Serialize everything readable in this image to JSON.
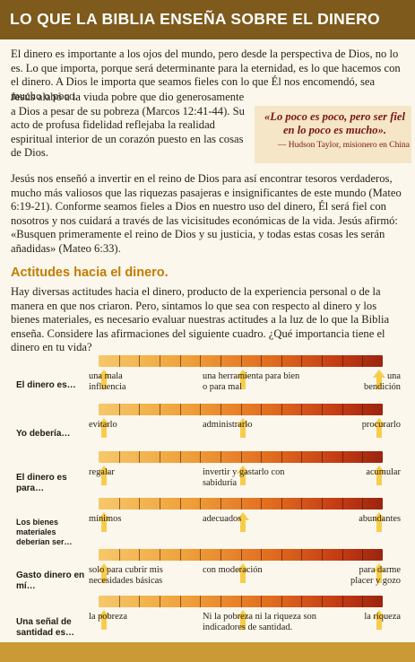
{
  "header": {
    "title": "LO QUE LA BIBLIA ENSEÑA SOBRE EL DINERO"
  },
  "intro": {
    "p1_full": "El dinero es importante a los ojos del mundo, pero desde la perspectiva de Dios, no lo es. Lo que importa, porque será determinante para la eternidad, es lo que hacemos con el dinero. A Dios le importa que seamos fieles con lo que Él nos encomendó, sea mucho o poco. Jesús alabó a la viuda pobre que dio generosamente a Dios a pesar de su pobreza (Marcos 12:41-44). Su acto de profusa fidelidad reflejaba la realidad espiritual interior de un corazón puesto en las cosas de Dios.",
    "p1_top": "El dinero es importante a los ojos del mundo, pero desde la perspectiva de Dios, no lo es. Lo que importa, porque será determinante para la eternidad, es lo que hacemos con el dinero. A Dios le importa que seamos fieles con lo que Él nos encomendó, sea mucho o poco.",
    "p1_rest": "Jesús alabó a la viuda pobre que dio generosamente a Dios a pesar de su pobreza (Marcos 12:41-44). Su acto de profusa fidelidad reflejaba la realidad espiritual interior de un corazón puesto en las cosas de Dios.",
    "p2": "Jesús nos enseñó a invertir en el reino de Dios para así encontrar tesoros verdaderos, mucho más valiosos que las riquezas pasajeras e insignificantes de este mundo (Mateo 6:19-21). Conforme seamos fieles a Dios en nuestro uso del dinero, Él será fiel con nosotros y nos cuidará a través de las vicisitudes económicas de la vida. Jesús afirmó: «Busquen primeramente el reino de Dios y su justicia, y todas estas cosas les serán añadidas» (Mateo 6:33)."
  },
  "quote": {
    "text": "«Lo poco es poco, pero ser fiel en lo poco es mucho».",
    "attribution": "— Hudson Taylor, misionero en China"
  },
  "attitudes": {
    "heading": "Actitudes hacia el dinero.",
    "intro": "Hay diversas actitudes hacia el dinero, producto de la experiencia personal o de la manera en que nos criaron. Pero, sintamos lo que sea con respecto al dinero y los bienes materiales, es necesario evaluar nuestras actitudes a la luz de lo que la Biblia enseña. Considere las afirmaciones del siguiente cuadro. ¿Qué importancia tiene el dinero en tu vida?",
    "rows": [
      {
        "label": "El dinero es…",
        "left": "una mala influencia",
        "middle": "una herramienta para bien o para mal",
        "right": "una bendición"
      },
      {
        "label": "Yo debería…",
        "left": "evitarlo",
        "middle": "administrarlo",
        "right": "procurarlo"
      },
      {
        "label": "El dinero es para…",
        "left": "regalar",
        "middle": "invertir y gastarlo con sabiduría",
        "right": "acumular"
      },
      {
        "label": "Los bienes materiales deberían ser…",
        "left": "mínimos",
        "middle": "adecuados",
        "right": "abundantes"
      },
      {
        "label": "Gasto dinero en mí…",
        "left": "solo para cubrir mis necesidades básicas",
        "middle": "con moderación",
        "right": "para darme placer y gozo"
      },
      {
        "label": "Una señal de santidad es…",
        "left": "la pobreza",
        "middle": "Ni la pobreza ni la riqueza son indicadores de santidad.",
        "right": "la riqueza"
      }
    ]
  },
  "colors": {
    "header_bg": "#7e5a1c",
    "heading": "#c47b00",
    "quote_text": "#7a1515",
    "quote_bg": "#f4e6c7",
    "arrow": "#f7c63a",
    "footer": "#c99a36"
  },
  "icons": {
    "arrow": "up-arrow-icon"
  }
}
